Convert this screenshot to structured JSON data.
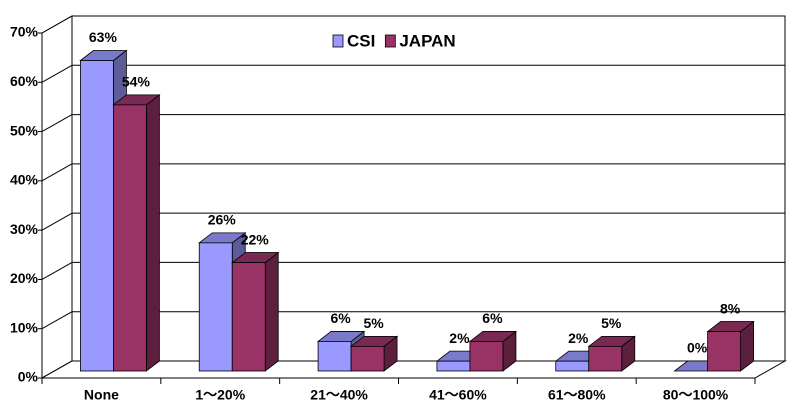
{
  "chart_data": {
    "type": "bar3d",
    "categories": [
      "None",
      "1～20%",
      "21～40%",
      "41～60%",
      "61～80%",
      "80～100%"
    ],
    "series": [
      {
        "name": "CSI",
        "color": "#9999ff",
        "values": [
          63,
          26,
          6,
          2,
          2,
          0
        ],
        "value_labels": [
          "63%",
          "26%",
          "6%",
          "2%",
          "2%",
          "0%"
        ]
      },
      {
        "name": "JAPAN",
        "color": "#993366",
        "values": [
          54,
          22,
          5,
          6,
          5,
          8
        ],
        "value_labels": [
          "54%",
          "22%",
          "5%",
          "6%",
          "5%",
          "8%"
        ]
      }
    ],
    "ylim": [
      0,
      70
    ],
    "yticks": [
      {
        "value": 0,
        "label": "0%"
      },
      {
        "value": 10,
        "label": "10%"
      },
      {
        "value": 20,
        "label": "20%"
      },
      {
        "value": 30,
        "label": "30%"
      },
      {
        "value": 40,
        "label": "40%"
      },
      {
        "value": 50,
        "label": "50%"
      },
      {
        "value": 60,
        "label": "60%"
      },
      {
        "value": 70,
        "label": "70%"
      }
    ],
    "grid": true,
    "legend": "top"
  }
}
